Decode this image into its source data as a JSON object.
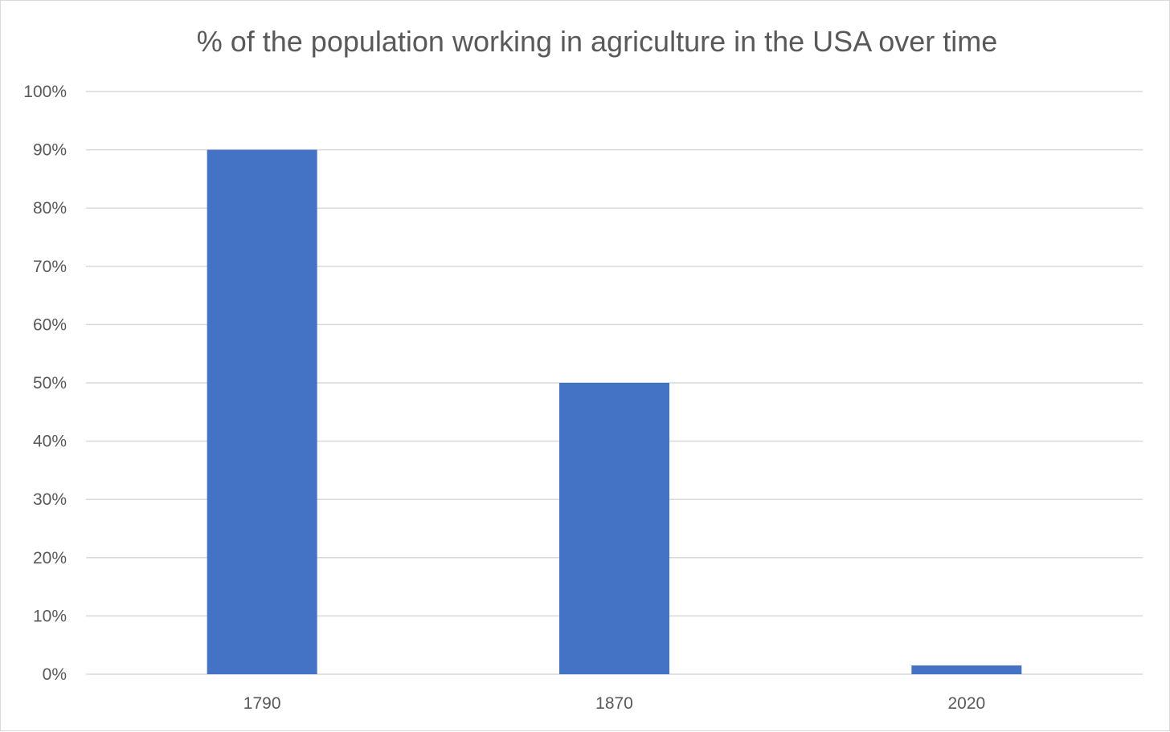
{
  "chart_data": {
    "type": "bar",
    "title": "% of the population working in agriculture in the USA over time",
    "categories": [
      "1790",
      "1870",
      "2020"
    ],
    "values": [
      90,
      50,
      1.5
    ],
    "ylim": [
      0,
      100
    ],
    "ytick_values": [
      0,
      10,
      20,
      30,
      40,
      50,
      60,
      70,
      80,
      90,
      100
    ],
    "ytick_labels": [
      "0%",
      "10%",
      "20%",
      "30%",
      "40%",
      "50%",
      "60%",
      "70%",
      "80%",
      "90%",
      "100%"
    ],
    "xlabel": "",
    "ylabel": "",
    "grid": "horizontal",
    "legend": "none",
    "bar_color": "#4472c4"
  }
}
